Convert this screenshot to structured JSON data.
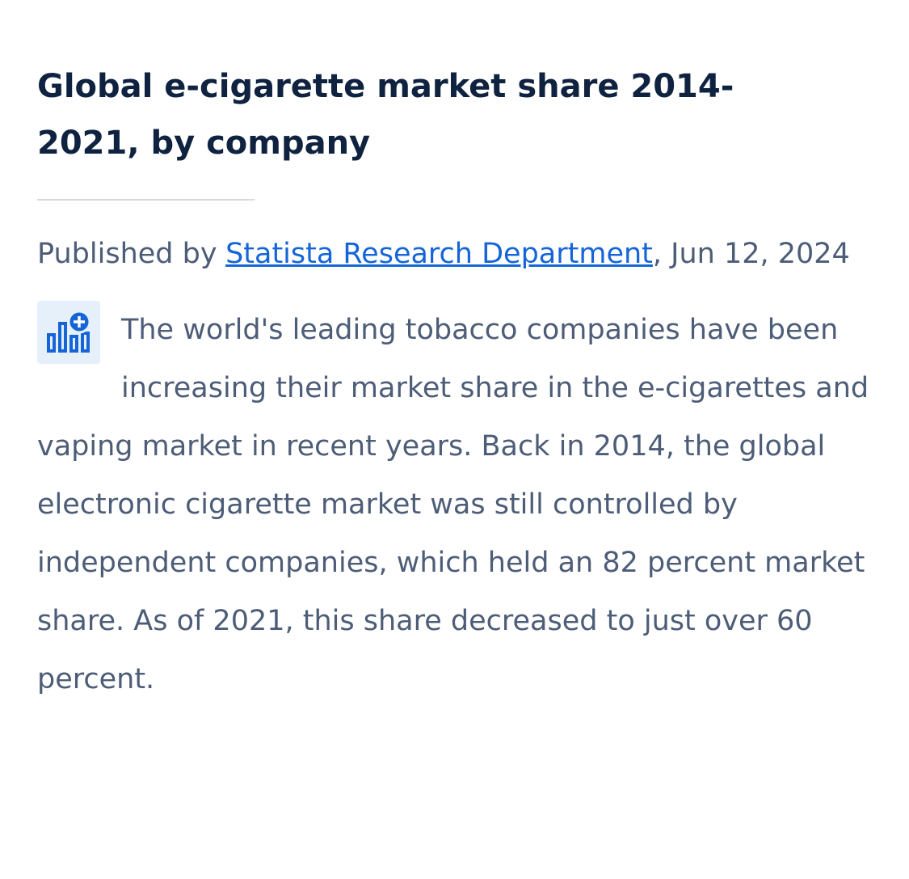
{
  "header": {
    "title": "Global e-cigarette market share 2014-2021, by company"
  },
  "byline": {
    "prefix": "Published by",
    "author": "Statista Research Department",
    "suffix": ", Jun 12, 2024"
  },
  "body": {
    "text": "The world's leading tobacco companies have been increasing their market share in the e-cigarettes and vaping market in recent years. Back in 2014, the global electronic cigarette market was still controlled by independent companies, which held an 82 percent market share. As of 2021, this share decreased to just over 60 percent."
  }
}
